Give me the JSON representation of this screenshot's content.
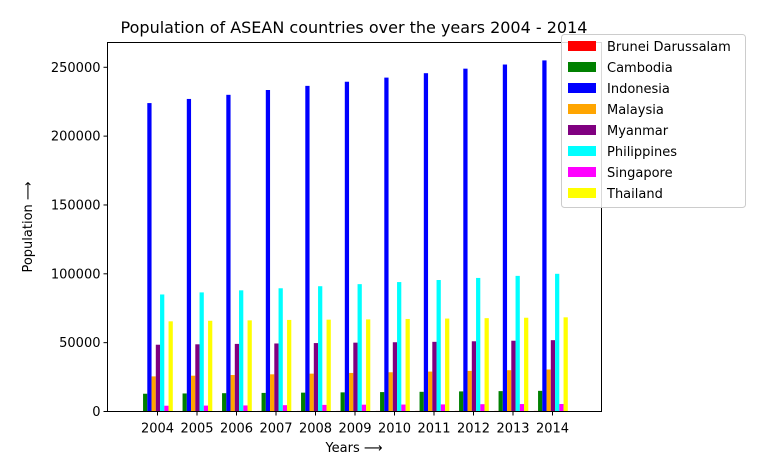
{
  "chart_data": {
    "type": "bar",
    "title": "Population of ASEAN countries over the years 2004 - 2014",
    "xlabel": "Years ⟶",
    "ylabel": "Population ⟶",
    "categories": [
      "2004",
      "2005",
      "2006",
      "2007",
      "2008",
      "2009",
      "2010",
      "2011",
      "2012",
      "2013",
      "2014"
    ],
    "ylim": [
      0,
      268000
    ],
    "yticks": [
      0,
      50000,
      100000,
      150000,
      200000,
      250000
    ],
    "grid": false,
    "legend_position": "outside-top-right",
    "series": [
      {
        "name": "Brunei Darussalam",
        "color": "#ff0000",
        "values": [
          365,
          373,
          381,
          389,
          396,
          404,
          411,
          418,
          425,
          432,
          438
        ]
      },
      {
        "name": "Cambodia",
        "color": "#008000",
        "values": [
          12900,
          13100,
          13300,
          13500,
          13700,
          13900,
          14100,
          14300,
          14600,
          14800,
          15000
        ]
      },
      {
        "name": "Indonesia",
        "color": "#0000ff",
        "values": [
          224000,
          227000,
          230000,
          233500,
          236500,
          239500,
          242500,
          245700,
          249000,
          252000,
          255000
        ]
      },
      {
        "name": "Malaysia",
        "color": "#ffa500",
        "values": [
          25500,
          26000,
          26500,
          27000,
          27500,
          28000,
          28500,
          29000,
          29500,
          30000,
          30500
        ]
      },
      {
        "name": "Myanmar",
        "color": "#800080",
        "values": [
          48500,
          48800,
          49100,
          49400,
          49700,
          50000,
          50300,
          50600,
          51000,
          51400,
          51800
        ]
      },
      {
        "name": "Philippines",
        "color": "#00ffff",
        "values": [
          85000,
          86500,
          88000,
          89500,
          91000,
          92500,
          94000,
          95500,
          97000,
          98500,
          100000
        ]
      },
      {
        "name": "Singapore",
        "color": "#ff00ff",
        "values": [
          4200,
          4300,
          4400,
          4600,
          4800,
          4950,
          5050,
          5150,
          5300,
          5400,
          5450
        ]
      },
      {
        "name": "Thailand",
        "color": "#ffff00",
        "values": [
          65500,
          65900,
          66200,
          66500,
          66700,
          66900,
          67200,
          67500,
          67800,
          68100,
          68400
        ]
      }
    ]
  }
}
